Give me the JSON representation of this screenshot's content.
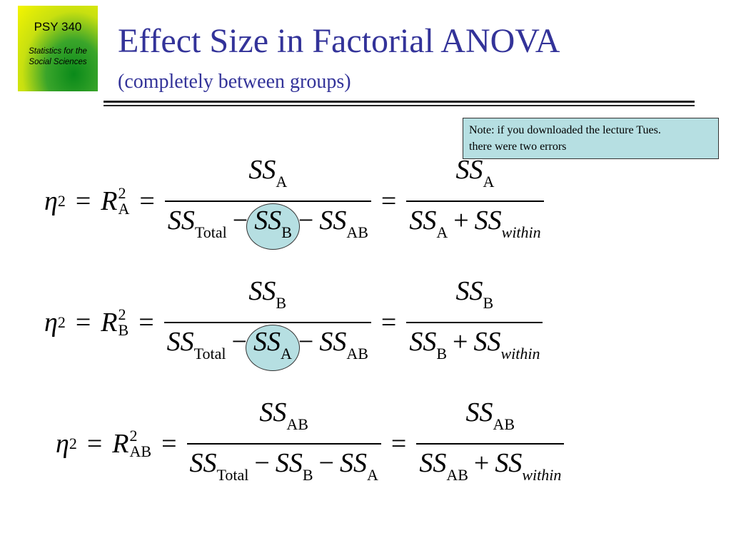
{
  "logo": {
    "course": "PSY 340",
    "line1": "Statistics for the",
    "line2": "Social Sciences"
  },
  "header": {
    "title": "Effect Size in Factorial ANOVA",
    "subtitle": "(completely between groups)"
  },
  "note": {
    "line1": "Note: if you downloaded the lecture Tues.",
    "line2": "there were two errors"
  },
  "equations": [
    {
      "eta": "η",
      "eta_exp": "2",
      "equals_1": "=",
      "r": "R",
      "r_sub": "A",
      "r_exp": "2",
      "equals_2": "=",
      "f1_num": [
        {
          "base": "SS",
          "sub": "A"
        }
      ],
      "f1_den": [
        {
          "base": "SS",
          "sub": "Total"
        },
        {
          "op": "−"
        },
        {
          "base": "SS",
          "sub": "B",
          "highlighted": true
        },
        {
          "op": "−"
        },
        {
          "base": "SS",
          "sub": "AB"
        }
      ],
      "equals_3": "=",
      "f2_num": [
        {
          "base": "SS",
          "sub": "A"
        }
      ],
      "f2_den": [
        {
          "base": "SS",
          "sub": "A"
        },
        {
          "op": "+"
        },
        {
          "base": "SS",
          "sub": "within",
          "sub_italic": true
        }
      ]
    },
    {
      "eta": "η",
      "eta_exp": "2",
      "equals_1": "=",
      "r": "R",
      "r_sub": "B",
      "r_exp": "2",
      "equals_2": "=",
      "f1_num": [
        {
          "base": "SS",
          "sub": "B"
        }
      ],
      "f1_den": [
        {
          "base": "SS",
          "sub": "Total"
        },
        {
          "op": "−"
        },
        {
          "base": "SS",
          "sub": "A",
          "highlighted": true
        },
        {
          "op": "−"
        },
        {
          "base": "SS",
          "sub": "AB"
        }
      ],
      "equals_3": "=",
      "f2_num": [
        {
          "base": "SS",
          "sub": "B"
        }
      ],
      "f2_den": [
        {
          "base": "SS",
          "sub": "B"
        },
        {
          "op": "+"
        },
        {
          "base": "SS",
          "sub": "within",
          "sub_italic": true
        }
      ]
    },
    {
      "eta": "η",
      "eta_exp": "2",
      "equals_1": "=",
      "r": "R",
      "r_sub": "AB",
      "r_exp": "2",
      "equals_2": "=",
      "f1_num": [
        {
          "base": "SS",
          "sub": "AB"
        }
      ],
      "f1_den": [
        {
          "base": "SS",
          "sub": "Total"
        },
        {
          "op": "−"
        },
        {
          "base": "SS",
          "sub": "B"
        },
        {
          "op": "−"
        },
        {
          "base": "SS",
          "sub": "A"
        }
      ],
      "equals_3": "=",
      "f2_num": [
        {
          "base": "SS",
          "sub": "AB"
        }
      ],
      "f2_den": [
        {
          "base": "SS",
          "sub": "AB"
        },
        {
          "op": "+"
        },
        {
          "base": "SS",
          "sub": "within",
          "sub_italic": true
        }
      ]
    }
  ]
}
